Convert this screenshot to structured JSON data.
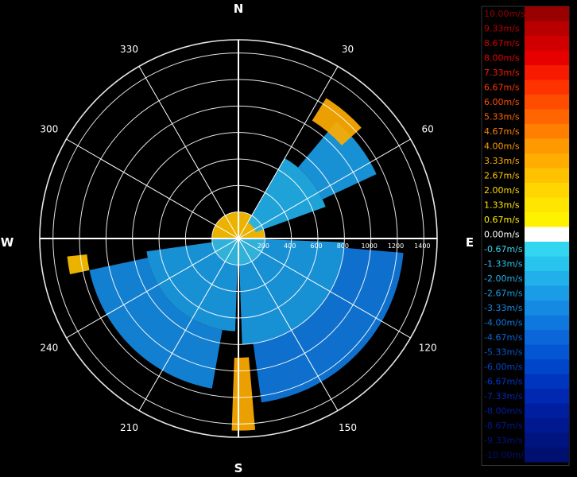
{
  "chart_data": {
    "type": "heatmap",
    "projection": "polar",
    "angle_unit": "degrees",
    "cardinals": [
      "N",
      "E",
      "S",
      "W"
    ],
    "bearing_labels": [
      "30",
      "60",
      "120",
      "150",
      "210",
      "240",
      "300",
      "330"
    ],
    "range_labels": [
      "200",
      "400",
      "600",
      "800",
      "1000",
      "1200",
      "1400"
    ],
    "range_max": 1500,
    "legend": {
      "labels": [
        "10.00m/s",
        "9.33m/s",
        "8.67m/s",
        "8.00m/s",
        "7.33m/s",
        "6.67m/s",
        "6.00m/s",
        "5.33m/s",
        "4.67m/s",
        "4.00m/s",
        "3.33m/s",
        "2.67m/s",
        "2.00m/s",
        "1.33m/s",
        "0.67m/s",
        "0.00m/s",
        "-0.67m/s",
        "-1.33m/s",
        "-2.00m/s",
        "-2.67m/s",
        "-3.33m/s",
        "-4.00m/s",
        "-4.67m/s",
        "-5.33m/s",
        "-6.00m/s",
        "-6.67m/s",
        "-7.33m/s",
        "-8.00m/s",
        "-8.67m/s",
        "-9.33m/s",
        "-10.00m/s"
      ],
      "colors": [
        "#990000",
        "#b80000",
        "#d10000",
        "#e60000",
        "#f51a00",
        "#ff3300",
        "#ff4d00",
        "#ff6600",
        "#ff8000",
        "#ff9900",
        "#ffad00",
        "#ffc200",
        "#ffd600",
        "#ffe600",
        "#fff200",
        "#ffffff",
        "#33d6f0",
        "#29c4ee",
        "#21b0ea",
        "#1a9ce6",
        "#148ae2",
        "#0f78de",
        "#0a66d9",
        "#0556d2",
        "#0046ca",
        "#0036bf",
        "#0028b0",
        "#001ea0",
        "#001890",
        "#001480",
        "#001070"
      ]
    },
    "sectors": [
      {
        "az_from": 0,
        "az_to": 360,
        "r_from": 0,
        "r_to": 200,
        "value": 2.4
      },
      {
        "az_from": 90,
        "az_to": 270,
        "r_from": 0,
        "r_to": 200,
        "value": -1.8
      },
      {
        "az_from": 30,
        "az_to": 70,
        "r_from": 140,
        "r_to": 700,
        "value": -2.2
      },
      {
        "az_from": 40,
        "az_to": 65,
        "r_from": 700,
        "r_to": 1150,
        "value": -2.8
      },
      {
        "az_from": 32,
        "az_to": 48,
        "r_from": 1050,
        "r_to": 1250,
        "value": 3.3
      },
      {
        "az_from": 92,
        "az_to": 178,
        "r_from": 200,
        "r_to": 800,
        "value": -3.0
      },
      {
        "az_from": 95,
        "az_to": 172,
        "r_from": 800,
        "r_to": 1250,
        "value": -4.2
      },
      {
        "az_from": 182,
        "az_to": 262,
        "r_from": 200,
        "r_to": 700,
        "value": -2.4
      },
      {
        "az_from": 190,
        "az_to": 258,
        "r_from": 700,
        "r_to": 1150,
        "value": -3.3
      },
      {
        "az_from": 258,
        "az_to": 264,
        "r_from": 1150,
        "r_to": 1300,
        "value": 2.7
      },
      {
        "az_from": 175,
        "az_to": 182,
        "r_from": 900,
        "r_to": 1450,
        "value": 3.2
      }
    ]
  }
}
